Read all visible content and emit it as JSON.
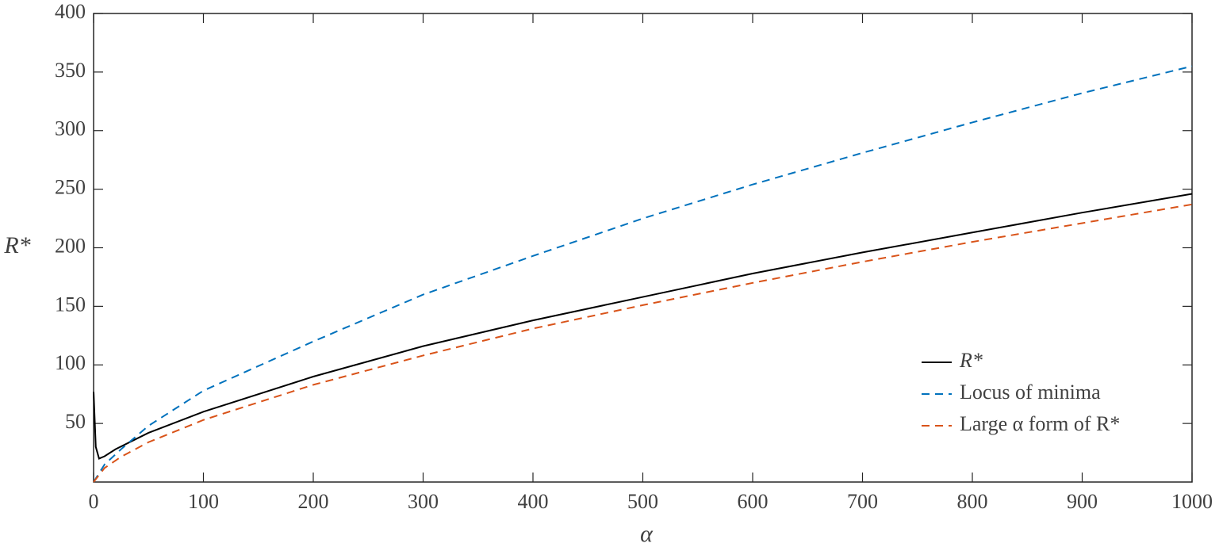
{
  "chart_data": {
    "type": "line",
    "xlabel": "α",
    "ylabel": "R*",
    "xlim": [
      0,
      1000
    ],
    "ylim": [
      0,
      400
    ],
    "xticks": [
      0,
      100,
      200,
      300,
      400,
      500,
      600,
      700,
      800,
      900,
      1000
    ],
    "yticks": [
      50,
      100,
      150,
      200,
      250,
      300,
      350,
      400
    ],
    "legend": "lower-right",
    "series": [
      {
        "name": "R*",
        "color": "#000000",
        "dash": false,
        "x": [
          0,
          2,
          5,
          10,
          20,
          50,
          100,
          200,
          300,
          400,
          500,
          600,
          700,
          800,
          900,
          1000
        ],
        "values": [
          77,
          30,
          20,
          22,
          28,
          42,
          60,
          90,
          116,
          138,
          158,
          178,
          196,
          213,
          230,
          246
        ]
      },
      {
        "name": "Locus of minima",
        "color": "#0072bd",
        "dash": true,
        "x": [
          0,
          10,
          25,
          50,
          100,
          200,
          300,
          400,
          500,
          600,
          700,
          800,
          900,
          1000
        ],
        "values": [
          0,
          15,
          28,
          48,
          78,
          120,
          160,
          193,
          225,
          254,
          281,
          307,
          332,
          355
        ]
      },
      {
        "name": "Large α form of R*",
        "color": "#d95319",
        "dash": true,
        "x": [
          0,
          10,
          25,
          50,
          100,
          200,
          300,
          400,
          500,
          600,
          700,
          800,
          900,
          1000
        ],
        "values": [
          0,
          12,
          21.5,
          34,
          53,
          83,
          108,
          131,
          151,
          170,
          188,
          205,
          221,
          237
        ]
      }
    ]
  }
}
